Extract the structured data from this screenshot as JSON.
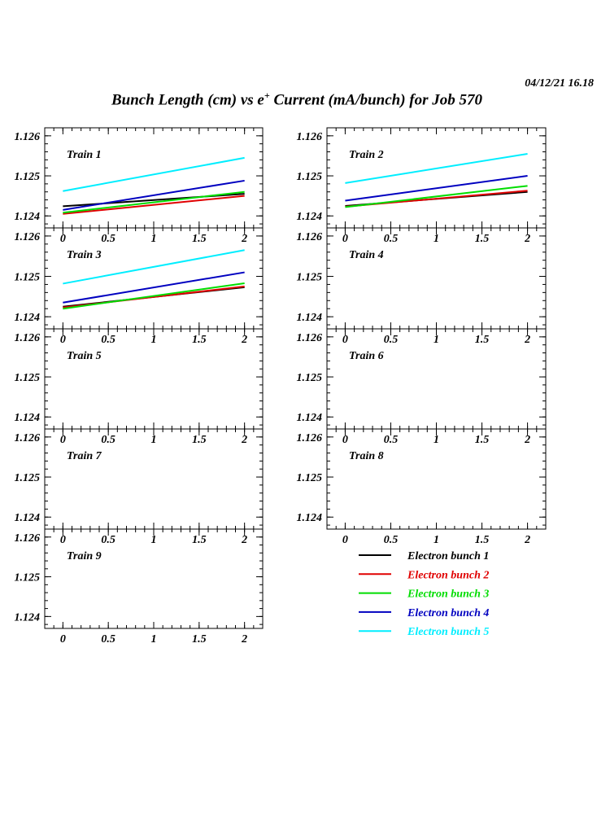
{
  "header": {
    "timestamp": "04/12/21   16.18",
    "title_pre": "Bunch Length (cm) vs e",
    "title_sup": "+",
    "title_post": " Current (mA/bunch) for Job 570"
  },
  "colors": {
    "axis": "#000000",
    "bunch1": "#000000",
    "bunch2": "#e00000",
    "bunch3": "#00dd00",
    "bunch4": "#0000c0",
    "bunch5": "#00eeff"
  },
  "chart_data": {
    "type": "line",
    "x_ticks": [
      "0",
      "0.5",
      "1",
      "1.5",
      "2"
    ],
    "y_ticks": [
      "1.124",
      "1.125",
      "1.126"
    ],
    "xlim": [
      -0.2,
      2.2
    ],
    "ylim": [
      1.1237,
      1.1262
    ],
    "legend": {
      "placement": "bottom-right",
      "entries": [
        {
          "label": "Electron bunch 1",
          "color": "#000000"
        },
        {
          "label": "Electron bunch 2",
          "color": "#e00000"
        },
        {
          "label": "Electron bunch 3",
          "color": "#00dd00"
        },
        {
          "label": "Electron bunch 4",
          "color": "#0000c0"
        },
        {
          "label": "Electron bunch 5",
          "color": "#00eeff"
        }
      ]
    },
    "panels": [
      {
        "label": "Train 1",
        "series": [
          {
            "x": [
              0,
              2
            ],
            "y": [
              1.12424,
              1.12455
            ],
            "color": "#000000"
          },
          {
            "x": [
              0,
              2
            ],
            "y": [
              1.12405,
              1.1245
            ],
            "color": "#e00000"
          },
          {
            "x": [
              0,
              2
            ],
            "y": [
              1.12408,
              1.1246
            ],
            "color": "#00dd00"
          },
          {
            "x": [
              0,
              2
            ],
            "y": [
              1.12415,
              1.12488
            ],
            "color": "#0000c0"
          },
          {
            "x": [
              0,
              2
            ],
            "y": [
              1.12462,
              1.12545
            ],
            "color": "#00eeff"
          }
        ]
      },
      {
        "label": "Train 2",
        "series": [
          {
            "x": [
              0,
              2
            ],
            "y": [
              1.12425,
              1.1246
            ],
            "color": "#000000"
          },
          {
            "x": [
              0,
              2
            ],
            "y": [
              1.12423,
              1.12463
            ],
            "color": "#e00000"
          },
          {
            "x": [
              0,
              2
            ],
            "y": [
              1.12422,
              1.12475
            ],
            "color": "#00dd00"
          },
          {
            "x": [
              0,
              2
            ],
            "y": [
              1.12438,
              1.125
            ],
            "color": "#0000c0"
          },
          {
            "x": [
              0,
              2
            ],
            "y": [
              1.12482,
              1.12555
            ],
            "color": "#00eeff"
          }
        ]
      },
      {
        "label": "Train 3",
        "series": [
          {
            "x": [
              0,
              2
            ],
            "y": [
              1.12425,
              1.12473
            ],
            "color": "#000000"
          },
          {
            "x": [
              0,
              2
            ],
            "y": [
              1.12423,
              1.12475
            ],
            "color": "#e00000"
          },
          {
            "x": [
              0,
              2
            ],
            "y": [
              1.1242,
              1.12483
            ],
            "color": "#00dd00"
          },
          {
            "x": [
              0,
              2
            ],
            "y": [
              1.12435,
              1.1251
            ],
            "color": "#0000c0"
          },
          {
            "x": [
              0,
              2
            ],
            "y": [
              1.12482,
              1.12565
            ],
            "color": "#00eeff"
          }
        ]
      },
      {
        "label": "Train 4",
        "series": []
      },
      {
        "label": "Train 5",
        "series": []
      },
      {
        "label": "Train 6",
        "series": []
      },
      {
        "label": "Train 7",
        "series": []
      },
      {
        "label": "Train 8",
        "series": []
      },
      {
        "label": "Train 9",
        "series": []
      }
    ]
  }
}
